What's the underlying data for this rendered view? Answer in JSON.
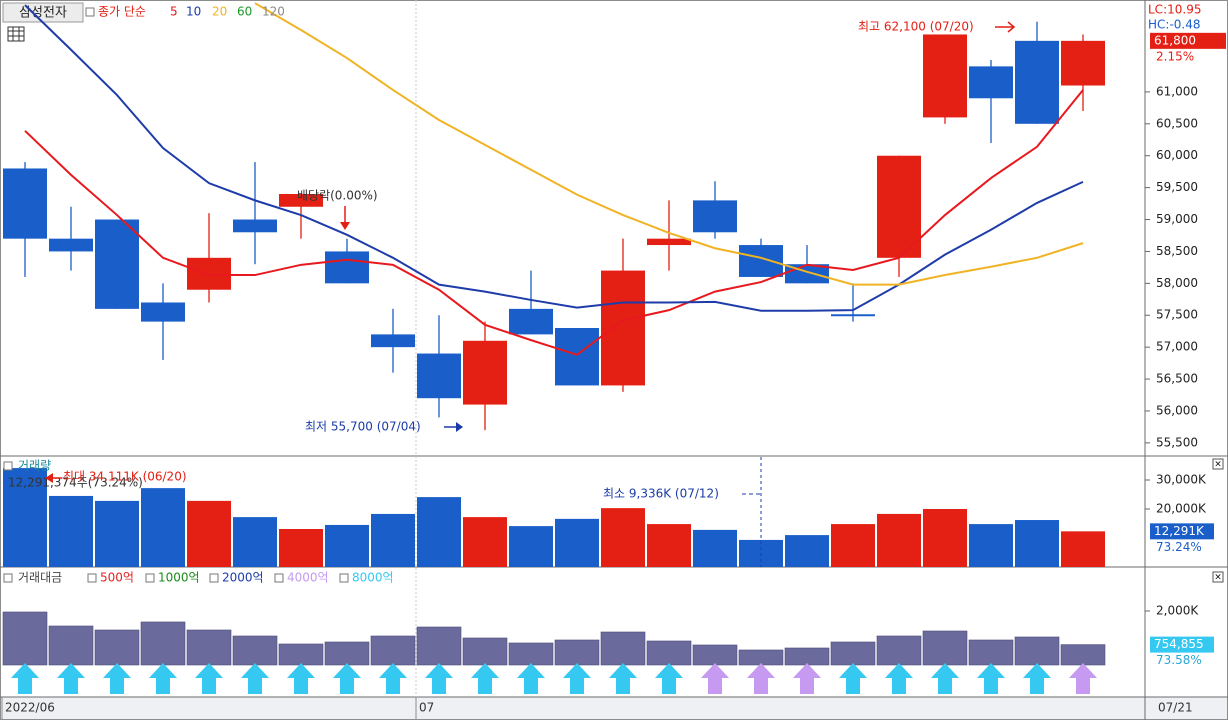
{
  "stock_name": "삼성전자",
  "chart_data": [
    {
      "type": "candlestick",
      "ma_label": "종가 단순",
      "categories": [
        "2022/06",
        null,
        null,
        null,
        null,
        null,
        null,
        null,
        null,
        "07",
        null,
        null,
        null,
        null,
        null,
        null,
        null,
        null,
        null,
        null,
        null,
        null,
        null,
        null
      ],
      "open": [
        59800,
        58700,
        59000,
        57700,
        57900,
        59000,
        59200,
        58500,
        57200,
        56900,
        56100,
        57600,
        57300,
        56400,
        58600,
        59300,
        58600,
        58300,
        57500,
        58400,
        60600,
        61400,
        61800,
        61100
      ],
      "high": [
        59900,
        59200,
        59000,
        58000,
        59100,
        59900,
        59400,
        58700,
        57600,
        57500,
        57400,
        58200,
        57300,
        58700,
        59300,
        59600,
        58700,
        58600,
        58000,
        60000,
        61900,
        61500,
        62100,
        61900
      ],
      "low": [
        58100,
        58200,
        57600,
        56800,
        57700,
        58300,
        58700,
        58000,
        56600,
        55900,
        55700,
        57200,
        56400,
        56300,
        58200,
        58700,
        58100,
        58000,
        57400,
        58100,
        60500,
        60200,
        60500,
        60700
      ],
      "close": [
        58700,
        58500,
        57600,
        57400,
        58400,
        58800,
        59400,
        58000,
        57000,
        56200,
        57100,
        57200,
        56400,
        58200,
        58700,
        58800,
        58100,
        58000,
        57500,
        60000,
        61900,
        60900,
        60500,
        61800
      ],
      "up_color": "#e41f13",
      "down_color": "#1a5fc9",
      "moving_averages": [
        {
          "name": "5",
          "color": "#e8191e",
          "values": [
            60390,
            59700,
            59070,
            58400,
            58130,
            58130,
            58290,
            58370,
            58290,
            57900,
            57350,
            57110,
            56880,
            57420,
            57580,
            57870,
            58020,
            58290,
            58210,
            58400,
            59070,
            59650,
            60140,
            61030
          ]
        },
        {
          "name": "10",
          "color": "#1e3caa",
          "values": [
            62360,
            61660,
            60950,
            60120,
            59570,
            59300,
            59070,
            58760,
            58400,
            57980,
            57870,
            57740,
            57620,
            57700,
            57700,
            57710,
            57570,
            57570,
            57580,
            57980,
            58450,
            58840,
            59260,
            59590
          ]
        },
        {
          "name": "20",
          "color": "#f0b323",
          "values": [
            null,
            null,
            null,
            null,
            null,
            62390,
            61970,
            61530,
            61030,
            60560,
            60170,
            59780,
            59390,
            59070,
            58790,
            58550,
            58400,
            58180,
            57980,
            57980,
            58130,
            58260,
            58400,
            58630
          ]
        },
        {
          "name": "60",
          "color": "#1a9a2a"
        },
        {
          "name": "120",
          "color": "#8a8a8a"
        }
      ],
      "ylim": [
        55310,
        62440
      ],
      "yticks": [
        {
          "value": 55500,
          "label": "55,500"
        },
        {
          "value": 56000,
          "label": "56,000"
        },
        {
          "value": 56500,
          "label": "56,500"
        },
        {
          "value": 57000,
          "label": "57,000"
        },
        {
          "value": 57500,
          "label": "57,500"
        },
        {
          "value": 58000,
          "label": "58,000"
        },
        {
          "value": 58500,
          "label": "58,500"
        },
        {
          "value": 59000,
          "label": "59,000"
        },
        {
          "value": 59500,
          "label": "59,500"
        },
        {
          "value": 60000,
          "label": "60,000"
        },
        {
          "value": 60500,
          "label": "60,500"
        },
        {
          "value": 61000,
          "label": "61,000"
        }
      ],
      "annotations": {
        "high": "최고 62,100 (07/20)",
        "low": "최저 55,700 (07/04)",
        "dividend": "배당락(0.00%)"
      },
      "lc_label": "LC:10.95",
      "hc_label": "HC:-0.48",
      "last_price_label": "61,800",
      "change_label": "2.15%",
      "last_date": "07/21"
    },
    {
      "type": "bar",
      "title": "거래량",
      "values": [
        34111,
        24500,
        22800,
        27200,
        22800,
        17200,
        13100,
        14500,
        18300,
        24100,
        17200,
        14100,
        16600,
        20300,
        14800,
        12800,
        9336,
        11000,
        14800,
        18300,
        20000,
        14800,
        16200,
        12291
      ],
      "colors": [
        "#1a5fc9",
        "#1a5fc9",
        "#1a5fc9",
        "#1a5fc9",
        "#e41f13",
        "#1a5fc9",
        "#e41f13",
        "#1a5fc9",
        "#1a5fc9",
        "#1a5fc9",
        "#e41f13",
        "#1a5fc9",
        "#1a5fc9",
        "#e41f13",
        "#e41f13",
        "#1a5fc9",
        "#1a5fc9",
        "#1a5fc9",
        "#e41f13",
        "#e41f13",
        "#e41f13",
        "#1a5fc9",
        "#1a5fc9",
        "#e41f13"
      ],
      "ylim": [
        0,
        37930
      ],
      "yticks": [
        {
          "value": 30000,
          "label": "30,000K"
        },
        {
          "value": 20000,
          "label": "20,000K"
        }
      ],
      "summary": "12,291,374주(73.24%)",
      "max_label": "최대 34,111K (06/20)",
      "min_label": "최소 9,336K (07/12)",
      "last_label": "12,291K",
      "ratio_label": "73.24%"
    },
    {
      "type": "bar",
      "title": "거래대금",
      "legend": [
        {
          "label": "500억",
          "color": "#e52222"
        },
        {
          "label": "1000억",
          "color": "#1a8a1a"
        },
        {
          "label": "2000억",
          "color": "#1d3ca8"
        },
        {
          "label": "4000억",
          "color": "#c59af0"
        },
        {
          "label": "8000억",
          "color": "#35c9f2"
        }
      ],
      "values": [
        1963000,
        1444000,
        1296000,
        1593000,
        1296000,
        1074000,
        778000,
        852000,
        1074000,
        1407000,
        1000000,
        815000,
        926000,
        1222000,
        889000,
        741000,
        556000,
        630000,
        852000,
        1074000,
        1259000,
        926000,
        1037000,
        754855
      ],
      "color": "#6a6a9c",
      "signal_colors": [
        "#35c9f2",
        "#35c9f2",
        "#35c9f2",
        "#35c9f2",
        "#35c9f2",
        "#35c9f2",
        "#35c9f2",
        "#35c9f2",
        "#35c9f2",
        "#35c9f2",
        "#35c9f2",
        "#35c9f2",
        "#35c9f2",
        "#35c9f2",
        "#35c9f2",
        "#c59af0",
        "#c59af0",
        "#c59af0",
        "#35c9f2",
        "#35c9f2",
        "#35c9f2",
        "#35c9f2",
        "#35c9f2",
        "#c59af0"
      ],
      "ylim": [
        0,
        3480000
      ],
      "yticks": [
        {
          "value": 2000000,
          "label": "2,000K"
        }
      ],
      "last_label": "754,855",
      "ratio_label": "73.58%"
    }
  ]
}
